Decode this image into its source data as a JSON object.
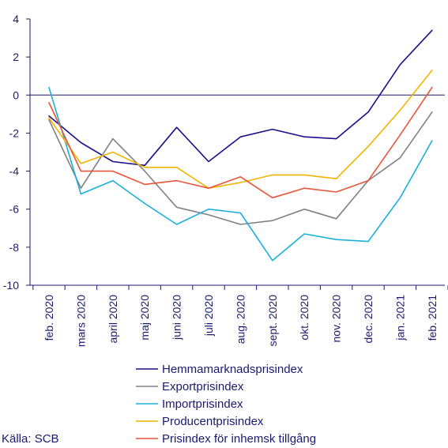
{
  "chart_data": {
    "type": "line",
    "categories": [
      "feb. 2020",
      "mars 2020",
      "april 2020",
      "maj 2020",
      "juni 2020",
      "juli 2020",
      "aug. 2020",
      "sept. 2020",
      "okt. 2020",
      "nov. 2020",
      "dec. 2020",
      "jan. 2021",
      "feb. 2021"
    ],
    "yticks": [
      "4",
      "2",
      "0",
      "-2",
      "-4",
      "-6",
      "-8",
      "-10"
    ],
    "ylim": [
      -10,
      4
    ],
    "grid": false,
    "legend_position": "bottom",
    "series": [
      {
        "name": "Hemmamarknadsprisindex",
        "color": "#1a0f8a",
        "values": [
          -1.1,
          -2.5,
          -3.5,
          -3.7,
          -1.7,
          -3.5,
          -2.2,
          -1.8,
          -2.2,
          -2.3,
          -0.9,
          1.6,
          3.4
        ]
      },
      {
        "name": "Exportprisindex",
        "color": "#808080",
        "values": [
          -1.3,
          -4.9,
          -2.3,
          -4.0,
          -5.9,
          -6.3,
          -6.8,
          -6.6,
          -6.0,
          -6.5,
          -4.5,
          -3.3,
          -0.9
        ]
      },
      {
        "name": "Importprisindex",
        "color": "#1ab0d9",
        "values": [
          0.4,
          -5.2,
          -4.5,
          -5.7,
          -6.8,
          -6.0,
          -6.2,
          -8.7,
          -7.3,
          -7.6,
          -7.7,
          -5.4,
          -2.4
        ]
      },
      {
        "name": "Producentprisindex",
        "color": "#f0b400",
        "values": [
          -1.2,
          -3.6,
          -3.0,
          -3.8,
          -3.8,
          -4.9,
          -4.6,
          -4.2,
          -4.2,
          -4.4,
          -2.7,
          -0.8,
          1.3
        ]
      },
      {
        "name": "Prisindex för inhemsk tillgång",
        "color": "#e8553a",
        "values": [
          -0.4,
          -4.0,
          -4.0,
          -4.7,
          -4.5,
          -4.9,
          -4.3,
          -5.4,
          -4.9,
          -5.1,
          -4.5,
          -2.1,
          0.4
        ]
      }
    ]
  },
  "source": "Källa: SCB"
}
